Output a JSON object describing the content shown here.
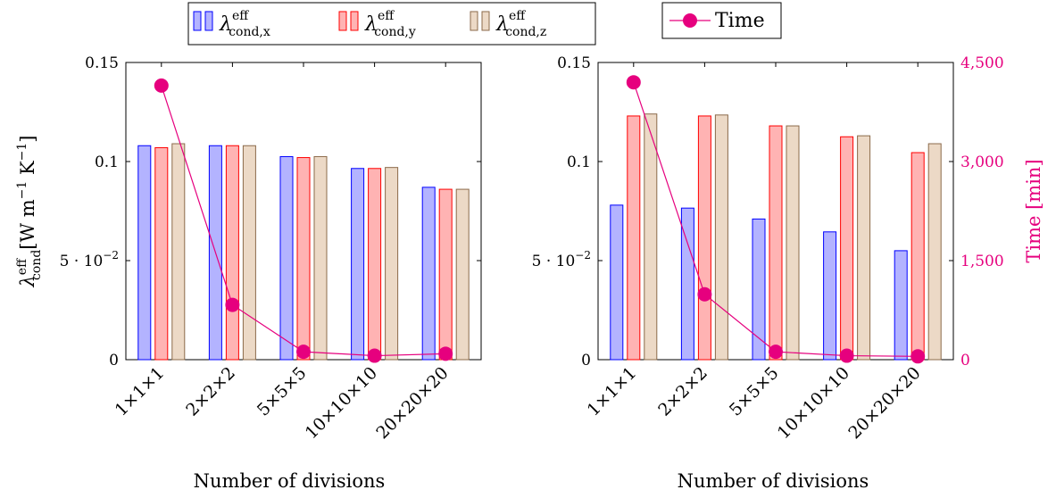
{
  "colors": {
    "x_fill": "#b3b3ff",
    "x_stroke": "#0000ff",
    "y_fill": "#ffb3b3",
    "y_stroke": "#ff0000",
    "z_fill": "#ecd9c6",
    "z_stroke": "#8b6a4a",
    "time": "#e6007e"
  },
  "legend": {
    "x": {
      "symbol": "λ",
      "sup": "eff",
      "sub": "cond,x"
    },
    "y": {
      "symbol": "λ",
      "sup": "eff",
      "sub": "cond,y"
    },
    "z": {
      "symbol": "λ",
      "sup": "eff",
      "sub": "cond,z"
    },
    "time": "Time",
    "time_marker_icon": "circle-marker-icon"
  },
  "chart_data": [
    {
      "type": "bar",
      "categories": [
        "1×1×1",
        "2×2×2",
        "5×5×5",
        "10×10×10",
        "20×20×20"
      ],
      "series": [
        {
          "name": "λeff cond,x",
          "values": [
            0.108,
            0.108,
            0.1025,
            0.0965,
            0.087
          ]
        },
        {
          "name": "λeff cond,y",
          "values": [
            0.107,
            0.108,
            0.102,
            0.0965,
            0.086
          ]
        },
        {
          "name": "λeff cond,z",
          "values": [
            0.109,
            0.108,
            0.1025,
            0.097,
            0.086
          ]
        }
      ],
      "time_series": {
        "name": "Time",
        "values": [
          4150,
          830,
          120,
          60,
          90
        ]
      },
      "ylim": [
        0,
        0.15
      ],
      "y2lim": [
        0,
        4500
      ],
      "yticks": [
        "0",
        "5 · 10",
        "0.1",
        "0.15"
      ],
      "ytick_exp": "−2",
      "ylabel": {
        "symbol": "λ",
        "sup": "eff",
        "sub": "cond",
        "unit": "[W m",
        "exp1": "−1",
        "unit2": " K",
        "exp2": "−1",
        "close": "]"
      },
      "xlabel": "Number of divisions"
    },
    {
      "type": "bar",
      "categories": [
        "1×1×1",
        "2×2×2",
        "5×5×5",
        "10×10×10",
        "20×20×20"
      ],
      "series": [
        {
          "name": "λeff cond,x",
          "values": [
            0.078,
            0.0765,
            0.071,
            0.0645,
            0.055
          ]
        },
        {
          "name": "λeff cond,y",
          "values": [
            0.123,
            0.123,
            0.118,
            0.1125,
            0.1045
          ]
        },
        {
          "name": "λeff cond,z",
          "values": [
            0.124,
            0.1235,
            0.118,
            0.113,
            0.109
          ]
        }
      ],
      "time_series": {
        "name": "Time",
        "values": [
          4200,
          990,
          120,
          60,
          50
        ]
      },
      "ylim": [
        0,
        0.15
      ],
      "y2lim": [
        0,
        4500
      ],
      "yticks": [
        "0",
        "5 · 10",
        "0.1",
        "0.15"
      ],
      "ytick_exp": "−2",
      "y2ticks": [
        "0",
        "1,500",
        "3,000",
        "4,500"
      ],
      "y2label": "Time [min]",
      "xlabel": "Number of divisions"
    }
  ]
}
